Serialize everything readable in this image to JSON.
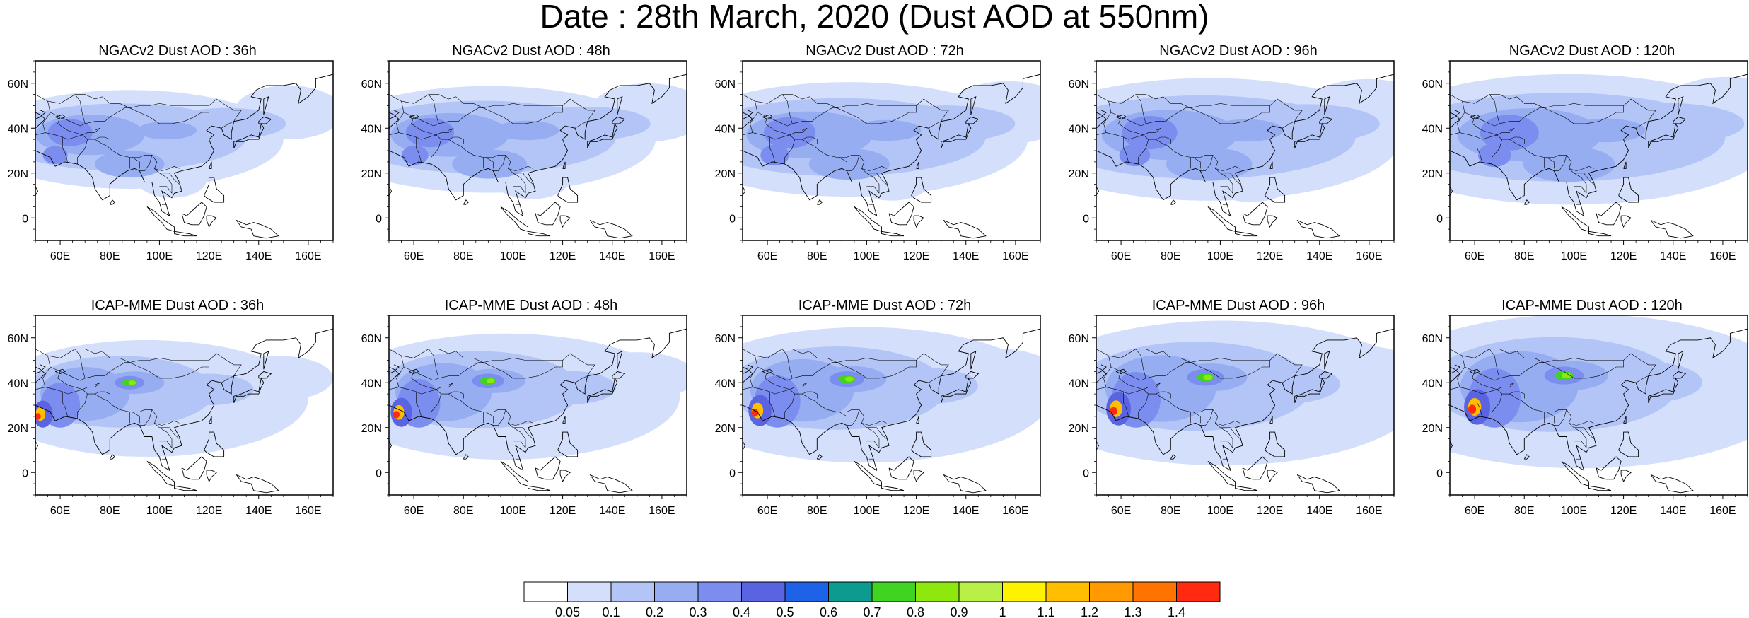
{
  "title": "Date : 28th March, 2020 (Dust AOD at 550nm)",
  "panels": [
    {
      "title": "NGACv2 Dust AOD : 36h",
      "row": 0
    },
    {
      "title": "NGACv2 Dust AOD : 48h",
      "row": 0
    },
    {
      "title": "NGACv2 Dust AOD : 72h",
      "row": 0
    },
    {
      "title": "NGACv2 Dust AOD : 96h",
      "row": 0
    },
    {
      "title": "NGACv2 Dust AOD : 120h",
      "row": 0
    },
    {
      "title": "ICAP-MME Dust AOD : 36h",
      "row": 1
    },
    {
      "title": "ICAP-MME Dust AOD : 48h",
      "row": 1
    },
    {
      "title": "ICAP-MME Dust AOD : 72h",
      "row": 1
    },
    {
      "title": "ICAP-MME Dust AOD : 96h",
      "row": 1
    },
    {
      "title": "ICAP-MME Dust AOD : 120h",
      "row": 1
    }
  ],
  "map": {
    "lon_range": [
      50,
      170
    ],
    "lat_range": [
      -10,
      70
    ],
    "lon_ticks": [
      "60E",
      "80E",
      "100E",
      "120E",
      "140E",
      "160E"
    ],
    "lon_tick_values": [
      60,
      80,
      100,
      120,
      140,
      160
    ],
    "lat_ticks": [
      "60N",
      "40N",
      "20N",
      "0"
    ],
    "lat_tick_values": [
      60,
      40,
      20,
      0
    ]
  },
  "colorbar": {
    "labels": [
      "0.05",
      "0.1",
      "0.2",
      "0.3",
      "0.4",
      "0.5",
      "0.6",
      "0.7",
      "0.8",
      "0.9",
      "1",
      "1.1",
      "1.2",
      "1.3",
      "1.4"
    ],
    "colors": [
      "#ffffff",
      "#d4e0fb",
      "#b3c5f6",
      "#96adf2",
      "#7b8ef0",
      "#5a63e0",
      "#1e62e8",
      "#0b9b8f",
      "#3ed41f",
      "#8ee80e",
      "#b8f047",
      "#fff200",
      "#ffbf00",
      "#ff9a00",
      "#ff7300",
      "#ff2a10"
    ]
  }
}
